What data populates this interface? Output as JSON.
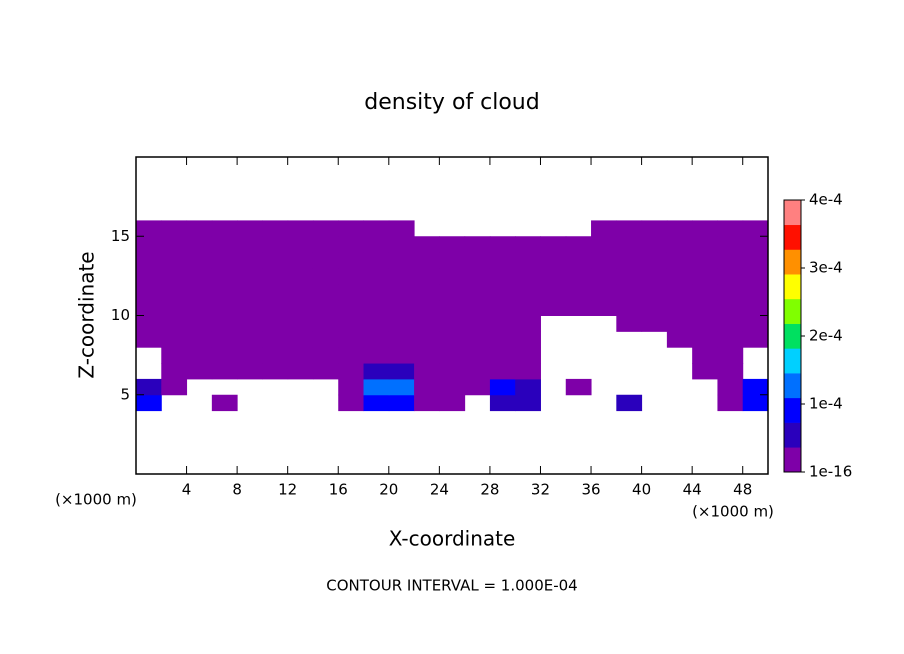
{
  "chart_data": {
    "type": "contour",
    "title": "density of cloud",
    "x_label": "X-coordinate",
    "y_label": "Z-coordinate",
    "x_unit_label": "(×1000 m)",
    "y_unit_label": "(×1000 m)",
    "annotation": "CONTOUR INTERVAL = 1.000E-04",
    "xlim": [
      0,
      50
    ],
    "ylim": [
      0,
      20
    ],
    "xticks": [
      4,
      8,
      12,
      16,
      20,
      24,
      28,
      32,
      36,
      40,
      44,
      48
    ],
    "yticks": [
      5,
      10,
      15
    ],
    "x": [
      1,
      3,
      5,
      7,
      9,
      11,
      13,
      15,
      17,
      19,
      21,
      23,
      25,
      27,
      29,
      31,
      33,
      35,
      37,
      39,
      41,
      43,
      45,
      47,
      49
    ],
    "z": [
      4.5,
      5.5,
      6.5,
      7.5,
      8.5,
      9.5,
      10.5,
      11.5,
      12.5,
      13.5,
      14.5,
      15.5
    ],
    "values": [
      [
        8e-05,
        null,
        null,
        3e-05,
        null,
        null,
        null,
        null,
        3e-05,
        0.0001,
        0.0001,
        1e-05,
        1e-05,
        null,
        6e-05,
        6e-05,
        null,
        null,
        null,
        4e-05,
        null,
        null,
        null,
        2e-05,
        9e-05
      ],
      [
        5e-05,
        1e-05,
        null,
        null,
        null,
        null,
        null,
        null,
        1e-05,
        0.00014,
        0.00012,
        3e-05,
        1e-05,
        1e-05,
        8e-05,
        5e-05,
        null,
        1e-05,
        null,
        null,
        null,
        null,
        null,
        3e-05,
        0.0001
      ],
      [
        null,
        1e-05,
        1e-05,
        1e-05,
        1e-05,
        1e-05,
        1e-05,
        1e-05,
        1e-05,
        5e-05,
        4e-05,
        2e-05,
        1e-05,
        1e-05,
        3e-05,
        1e-05,
        null,
        null,
        null,
        null,
        null,
        null,
        1e-05,
        1e-05,
        null
      ],
      [
        null,
        1e-05,
        1e-05,
        1e-05,
        1e-05,
        1e-05,
        1e-05,
        1e-05,
        1e-05,
        3e-05,
        3e-05,
        1e-05,
        1e-05,
        1e-05,
        1e-05,
        1e-05,
        null,
        null,
        null,
        null,
        null,
        null,
        1e-05,
        1e-05,
        null
      ],
      [
        1e-05,
        1e-05,
        1e-05,
        1e-05,
        1e-05,
        1e-05,
        1e-05,
        1e-05,
        1e-05,
        2e-05,
        2e-05,
        1e-05,
        1e-05,
        1e-05,
        1e-05,
        1e-05,
        null,
        null,
        null,
        null,
        null,
        1e-05,
        1e-05,
        1e-05,
        1e-05
      ],
      [
        1e-05,
        1e-05,
        1e-05,
        1e-05,
        1e-05,
        1e-05,
        1e-05,
        1e-05,
        1e-05,
        1e-05,
        1e-05,
        1e-05,
        1e-05,
        1e-05,
        1e-05,
        1e-05,
        null,
        null,
        null,
        1e-05,
        1e-05,
        1e-05,
        1e-05,
        1e-05,
        1e-05
      ],
      [
        1e-05,
        1e-05,
        1e-05,
        1e-05,
        1e-05,
        1e-05,
        1e-05,
        1e-05,
        1e-05,
        1e-05,
        1e-05,
        1e-05,
        1e-05,
        1e-05,
        1e-05,
        1e-05,
        1e-05,
        1e-05,
        1e-05,
        1e-05,
        1e-05,
        1e-05,
        1e-05,
        1e-05,
        1e-05
      ],
      [
        1e-05,
        1e-05,
        1e-05,
        1e-05,
        1e-05,
        1e-05,
        1e-05,
        1e-05,
        1e-05,
        1e-05,
        1e-05,
        1e-05,
        1e-05,
        1e-05,
        1e-05,
        1e-05,
        1e-05,
        1e-05,
        1e-05,
        1e-05,
        1e-05,
        1e-05,
        1e-05,
        1e-05,
        1e-05
      ],
      [
        1e-05,
        1e-05,
        1e-05,
        1e-05,
        1e-05,
        1e-05,
        1e-05,
        1e-05,
        1e-05,
        1e-05,
        1e-05,
        1e-05,
        1e-05,
        1e-05,
        1e-05,
        1e-05,
        1e-05,
        1e-05,
        1e-05,
        1e-05,
        1e-05,
        1e-05,
        1e-05,
        1e-05,
        1e-05
      ],
      [
        1e-05,
        1e-05,
        1e-05,
        1e-05,
        1e-05,
        1e-05,
        1e-05,
        1e-05,
        1e-05,
        1e-05,
        1e-05,
        1e-05,
        1e-05,
        1e-05,
        1e-05,
        1e-05,
        1e-05,
        1e-05,
        1e-05,
        1e-05,
        1e-05,
        1e-05,
        1e-05,
        1e-05,
        1e-05
      ],
      [
        1e-05,
        1e-05,
        1e-05,
        1e-05,
        1e-05,
        1e-05,
        1e-05,
        1e-05,
        1e-05,
        1e-05,
        1e-05,
        1e-05,
        1e-05,
        1e-05,
        1e-05,
        1e-05,
        1e-05,
        1e-05,
        1e-05,
        1e-05,
        1e-05,
        1e-05,
        1e-05,
        1e-05,
        1e-05
      ],
      [
        1e-05,
        1e-05,
        1e-05,
        1e-05,
        1e-05,
        1e-05,
        1e-05,
        1e-05,
        1e-05,
        1e-05,
        1e-05,
        null,
        null,
        null,
        null,
        null,
        null,
        null,
        1e-05,
        1e-05,
        1e-05,
        1e-05,
        1e-05,
        1e-05,
        1e-05
      ]
    ],
    "colorbar": {
      "lim": [
        1e-16,
        0.0004
      ],
      "ticks": [
        1e-16,
        {
          "value": 0.0001,
          "label": "1e-4"
        },
        {
          "value": 0.0002,
          "label": "2e-4"
        },
        {
          "value": 0.0003,
          "label": "3e-4"
        },
        {
          "value": 0.0004,
          "label": "4e-4"
        }
      ],
      "colors": [
        "#7e00a8",
        "#2a00bc",
        "#0000ff",
        "#0070ff",
        "#00d0ff",
        "#00e060",
        "#80ff00",
        "#ffff00",
        "#ff9000",
        "#ff1000",
        "#ff8080"
      ]
    }
  }
}
